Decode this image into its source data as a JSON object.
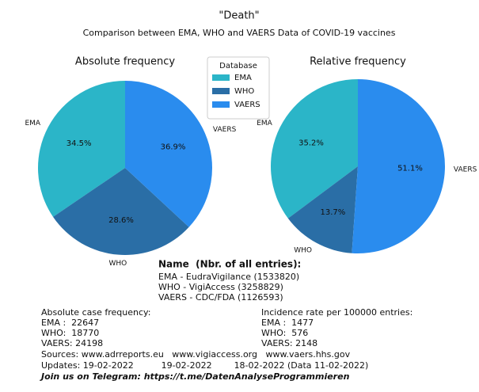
{
  "chart_data": [
    {
      "type": "pie",
      "title": "Absolute frequency",
      "categories": [
        "EMA",
        "WHO",
        "VAERS"
      ],
      "values": [
        34.5,
        28.6,
        36.9
      ],
      "value_labels": [
        "34.5%",
        "28.6%",
        "36.9%"
      ],
      "colors": [
        "#2bb5c8",
        "#2a6ea6",
        "#2a8cee"
      ]
    },
    {
      "type": "pie",
      "title": "Relative frequency",
      "categories": [
        "EMA",
        "WHO",
        "VAERS"
      ],
      "values": [
        35.2,
        13.7,
        51.1
      ],
      "value_labels": [
        "35.2%",
        "13.7%",
        "51.1%"
      ],
      "colors": [
        "#2bb5c8",
        "#2a6ea6",
        "#2a8cee"
      ]
    }
  ],
  "header": {
    "title": "\"Death\"",
    "subtitle": "Comparison between EMA, WHO and VAERS Data of COVID-19 vaccines"
  },
  "legend": {
    "title": "Database"
  },
  "info": {
    "heading": "Name  (Nbr. of all entries):",
    "sources": [
      "EMA - EudraVigilance (1533820)",
      "WHO - VigiAccess (3258829)",
      "VAERS - CDC/FDA (1126593)"
    ],
    "left": [
      "Absolute case frequency:",
      "EMA :  22647",
      "WHO:  18770",
      "VAERS: 24198"
    ],
    "right": [
      "Incidence rate per 100000 entries:",
      "EMA :  1477",
      "WHO:  576",
      "VAERS: 2148"
    ],
    "websites": "Sources: www.adrreports.eu   www.vigiaccess.org   www.vaers.hhs.gov",
    "updates": "Updates: 19-02-2022          19-02-2022        18-02-2022 (Data 11-02-2022)",
    "telegram": "Join us on Telegram: https://t.me/DatenAnalyseProgrammieren"
  }
}
